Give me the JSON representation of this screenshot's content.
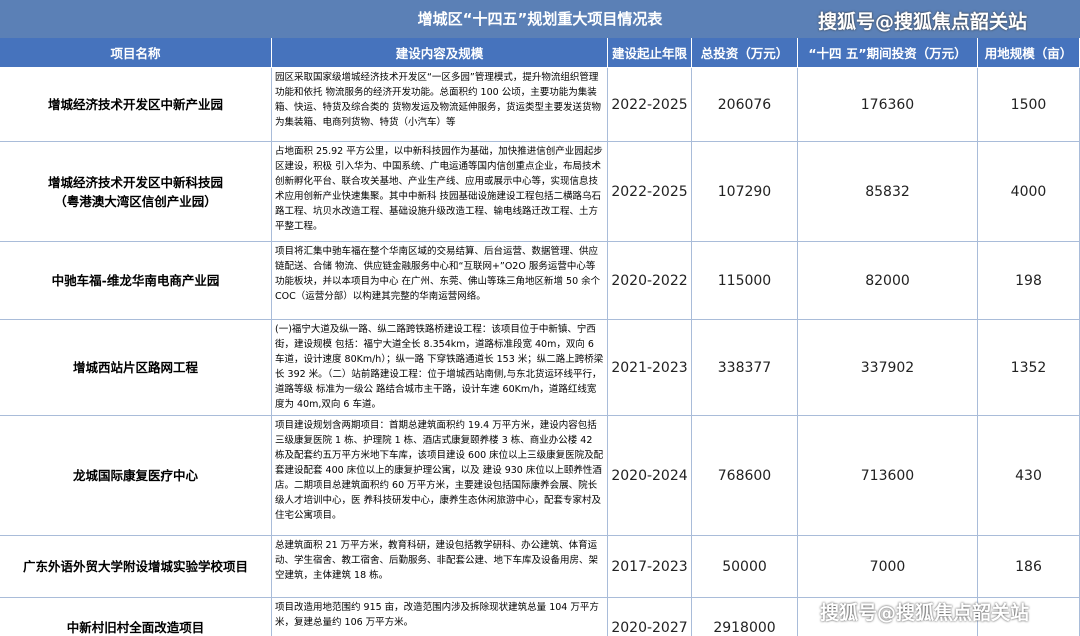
{
  "title": "增城区“十四五”规划重大项目情况表",
  "watermark_top": "搜狐号@搜狐焦点韶关站",
  "watermark_bottom": "搜狐号@搜狐焦点韶关站",
  "table": {
    "header": [
      "项目名称",
      "建设内容及规模",
      "建设起止年限",
      "总投资（万元）",
      "“十四 五”期间投资（万元）",
      "用地规模（亩）"
    ],
    "rows": [
      [
        "增城经济技术开发区中新产业园",
        "园区采取国家级增城经济技术开发区“一区多园”管理模式，提升物流组织管理功能和依托 物流服务的经济开发功能。总面积约 100 公顷，主要功能为集装箱、快运、特货及综合类的 货物发运及物流延伸服务，货运类型主要发送货物为集装箱、电商列货物、特货（小汽车）等",
        "2022-2025",
        206076,
        176360,
        1500
      ],
      [
        "增城经济技术开发区中新科技园\n（粤港澳大湾区信创产业园）",
        "占地面积 25.92 平方公里，以中新科技园作为基础，加快推进信创产业园起步区建设，积极 引入华为、中国系统、广电运通等国内信创重点企业，布局技术创新孵化平台、联合攻关基地、产业生产线、应用或展示中心等，实现信息技术应用创新产业快速集聚。其中中新科 技园基础设施建设工程包括二横路乌石路工程、坑贝水改造工程、基础设施升级改造工程、输电线路迁改工程、土方平整工程。",
        "2022-2025",
        107290,
        85832,
        4000
      ],
      [
        "中驰车福-维龙华南电商产业园",
        "项目将汇集中驰车福在整个华南区域的交易结算、后台运营、数据管理、供应链配送、合储 物流、供应链金融服务中心和“互联网+”O2O 服务运营中心等功能板块，并以本项目为中心 在广州、东莞、佛山等珠三角地区新增 50 余个 COC（运营分部）以构建其完整的华南运营网络。",
        "2020-2022",
        115000,
        82000,
        198
      ],
      [
        "增城西站片区路网工程",
        "(一)福宁大道及纵一路、纵二路跨铁路桥建设工程：该项目位于中新镇、宁西街，建设规模 包括：福宁大道全长 8.354km，道路标准段宽 40m，双向 6 车道，设计速度 80Km/h）；纵一路 下穿铁路通道长 153 米；纵二路上跨桥梁长 392 米。（二）站前路建设工程：位于增城西站南侧,与东北货运环线平行，道路等级 标准为一级公 路结合城市主干路，设计车速 60Km/h，道路红线宽度为 40m,双向 6 车道。",
        "2021-2023",
        338377,
        337902,
        1352
      ],
      [
        "龙城国际康复医疗中心",
        "项目建设规划含两期项目：首期总建筑面积约 19.4 万平方米，建设内容包括三级康复医院 1 栋、护理院 1 栋、酒店式康复颐养楼 3 栋、商业办公楼 42 栋及配套约五万平方米地下车库，该项目建设 600 床位以上三级康复医院及配套建设配套 400 床位以上的康复护理公寓，以及 建设 930 床位以上颐养性酒店。二期项目总建筑面积约 60 万平方米，主要建设包括国际康养会展、院长级人才培训中心，医 养科技研发中心，康养生态休闲旅游中心，配套专家村及住宅公寓项目。",
        "2020-2024",
        768600,
        713600,
        430
      ],
      [
        "广东外语外贸大学附设增城实验学校项目",
        "总建筑面积 21 万平方米，教育科研，建设包括教学研科、办公建筑、体育运动、学生宿舍、教工宿舍、后勤服务、非配套公建、地下车库及设备用房、架空建筑，主体建筑 18 栋。",
        "2017-2023",
        50000,
        7000,
        186
      ],
      [
        "中新村旧村全面改造项目",
        "项目改造用地范围约 915 亩，改造范围内涉及拆除现状建筑总量 104 万平方米，复建总量约 106 万平方米。",
        "2020-2027",
        2918000
      ]
    ]
  }
}
